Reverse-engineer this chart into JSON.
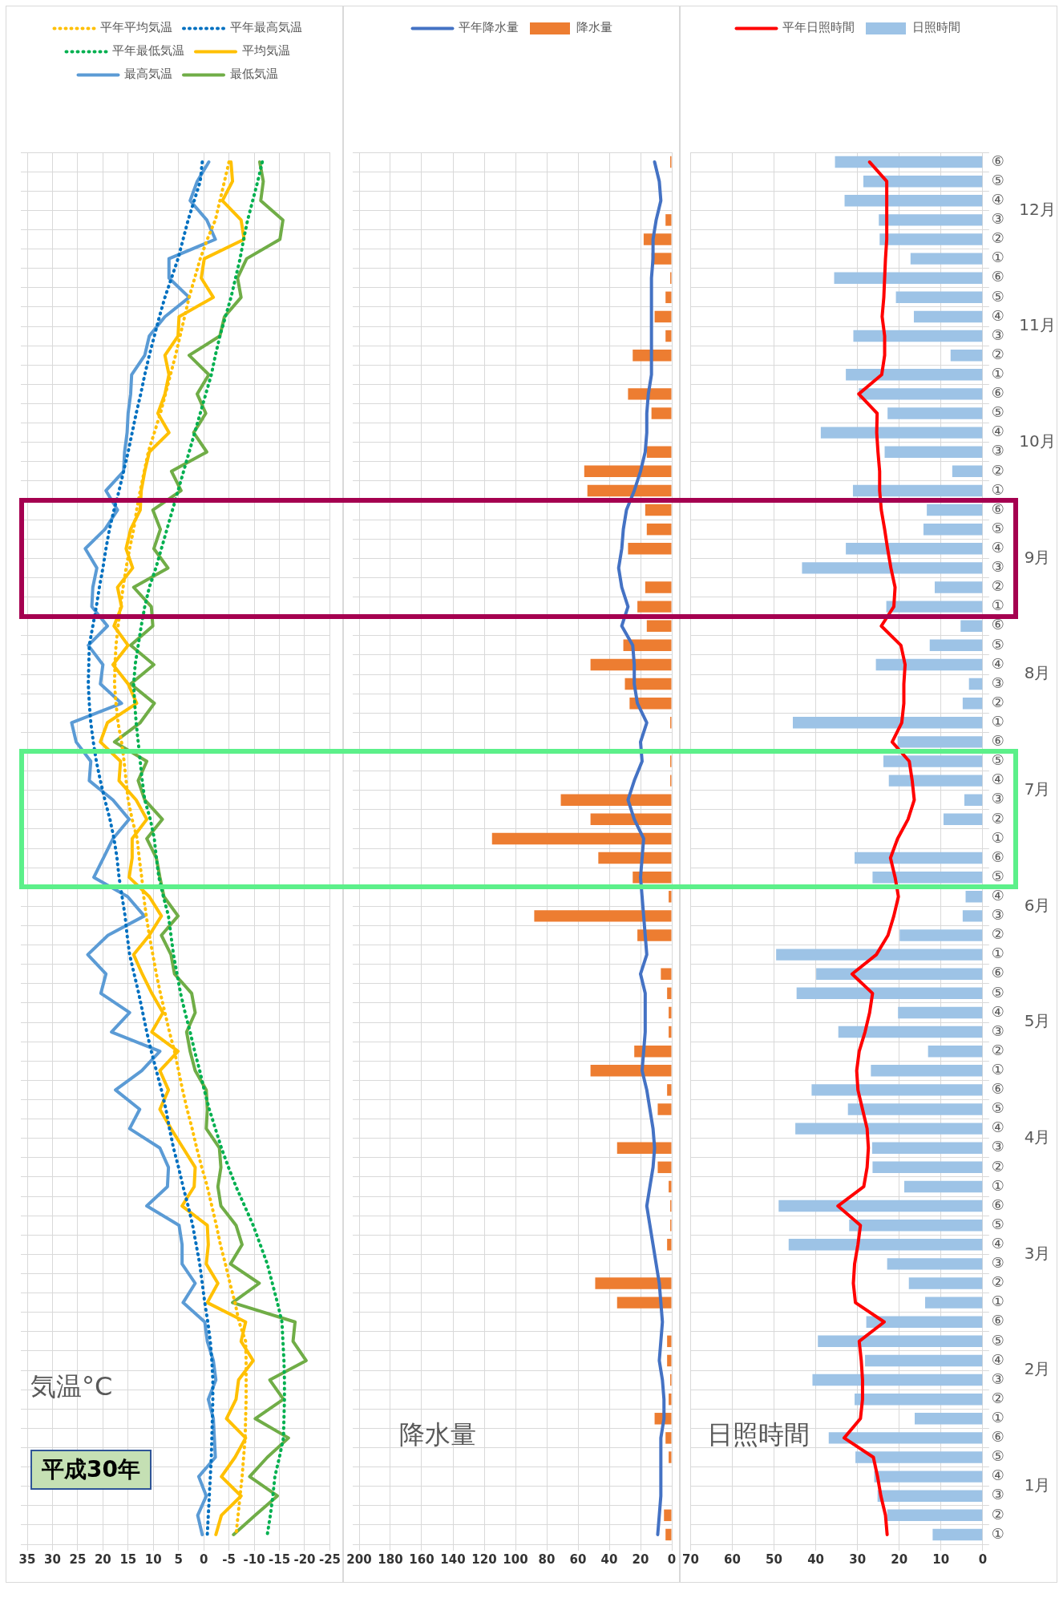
{
  "chart_data": [
    {
      "type": "line",
      "orientation": "horizontal",
      "title": "平成30年",
      "xlabel": "気温°C",
      "categories": [
        null,
        null,
        null,
        null,
        null,
        null,
        null,
        null,
        null,
        null,
        null,
        null,
        null,
        null,
        null,
        null,
        null,
        null,
        null,
        null,
        null,
        null,
        null,
        null,
        null,
        null,
        null,
        null,
        null,
        null,
        null,
        null,
        null,
        null,
        null,
        null,
        null,
        null,
        null,
        null,
        null,
        null,
        null,
        null,
        null,
        null,
        null,
        null,
        null,
        null,
        null,
        null,
        null,
        null,
        null,
        null,
        null,
        null,
        null,
        null,
        null,
        null,
        null,
        null,
        null,
        null,
        null,
        null,
        null,
        null,
        null,
        null
      ],
      "xlim": [
        35,
        -25
      ],
      "xticks": [
        35,
        30,
        25,
        20,
        15,
        10,
        5,
        0,
        -5,
        -10,
        -15,
        -20,
        -25
      ],
      "grid": true,
      "legend": "top",
      "tick_labels": "x",
      "series": [
        {
          "name": "平年平均気温",
          "color": "#ffc000",
          "line_style": "dotted",
          "values": [
            -5.0,
            -4.1,
            -3.2,
            -2.3,
            -0.7,
            0.7,
            1.8,
            2.9,
            3.8,
            4.7,
            5.6,
            6.6,
            7.6,
            8.6,
            9.8,
            11.0,
            11.8,
            12.6,
            13.3,
            13.9,
            14.7,
            15.4,
            16.0,
            16.5,
            17.0,
            17.4,
            17.6,
            17.7,
            17.4,
            17.0,
            16.3,
            15.8,
            15.4,
            15.0,
            14.2,
            13.2,
            12.8,
            12.3,
            11.9,
            11.4,
            10.8,
            10.1,
            9.4,
            8.6,
            7.7,
            6.8,
            5.8,
            5.0,
            4.2,
            3.3,
            2.3,
            1.4,
            0.4,
            -0.7,
            -1.6,
            -2.5,
            -3.3,
            -4.3,
            -5.2,
            -6.2,
            -7.0,
            -8.3,
            -8.4,
            -8.4,
            -8.4,
            -8.3,
            -8.2,
            -7.9,
            -7.6,
            -7.2,
            -6.8,
            -6.4
          ]
        },
        {
          "name": "平年最高気温",
          "color": "#0070c0",
          "line_style": "dotted",
          "values": [
            0.3,
            0.7,
            1.9,
            3.1,
            4.1,
            5.1,
            6.4,
            7.7,
            8.8,
            9.8,
            10.8,
            11.7,
            12.5,
            13.4,
            14.2,
            15.0,
            15.9,
            16.8,
            17.8,
            18.7,
            19.4,
            20.0,
            20.7,
            21.3,
            22.0,
            22.7,
            22.8,
            22.9,
            22.7,
            22.4,
            21.9,
            21.3,
            20.5,
            19.6,
            18.6,
            17.8,
            17.2,
            16.8,
            16.2,
            15.6,
            15.2,
            14.7,
            13.8,
            12.9,
            12.1,
            11.3,
            10.4,
            9.4,
            8.4,
            7.5,
            6.8,
            6.0,
            5.0,
            4.1,
            3.1,
            2.2,
            1.5,
            0.8,
            0.3,
            -0.2,
            -0.8,
            -1.3,
            -1.6,
            -1.8,
            -1.8,
            -1.7,
            -1.6,
            -1.5,
            -1.3,
            -1.1,
            -0.9,
            -0.7
          ]
        },
        {
          "name": "平年最低気温",
          "color": "#00b050",
          "line_style": "dotted",
          "values": [
            -11.6,
            -10.7,
            -9.7,
            -8.7,
            -7.9,
            -7.2,
            -6.3,
            -5.4,
            -4.3,
            -3.2,
            -2.3,
            -1.5,
            -0.4,
            0.7,
            1.8,
            2.9,
            4.0,
            5.1,
            6.2,
            7.3,
            8.4,
            9.5,
            10.8,
            11.7,
            12.4,
            13.0,
            13.6,
            13.9,
            13.7,
            13.4,
            13.0,
            12.6,
            12.2,
            11.7,
            10.6,
            9.8,
            9.4,
            8.9,
            8.0,
            7.0,
            6.5,
            6.0,
            5.3,
            4.6,
            3.7,
            2.7,
            1.8,
            0.8,
            -0.1,
            -1.1,
            -2.3,
            -3.5,
            -4.9,
            -6.4,
            -8.1,
            -9.8,
            -11.2,
            -12.6,
            -13.6,
            -14.6,
            -15.5,
            -15.7,
            -15.9,
            -16.0,
            -16.0,
            -15.9,
            -15.8,
            -15.0,
            -14.1,
            -13.7,
            -13.2,
            -12.6
          ]
        },
        {
          "name": "平均気温",
          "color": "#ffc000",
          "line_style": "solid",
          "values": [
            -5.4,
            -5.7,
            -3.7,
            -7.4,
            -8.0,
            -0.1,
            0.5,
            -1.9,
            4.9,
            5.1,
            7.7,
            6.9,
            7.7,
            9.1,
            6.9,
            10.8,
            11.7,
            12.4,
            12.6,
            14.5,
            15.4,
            14.1,
            17.1,
            16.3,
            17.8,
            15.0,
            18.0,
            15.0,
            13.3,
            19.1,
            20.5,
            16.5,
            16.8,
            13.4,
            11.3,
            14.2,
            14.2,
            14.8,
            10.8,
            8.4,
            10.8,
            13.9,
            12.2,
            10.3,
            8.1,
            10.3,
            5.1,
            8.7,
            7.0,
            8.7,
            6.5,
            4.1,
            1.7,
            1.9,
            4.3,
            -0.7,
            -0.9,
            -0.5,
            -2.8,
            -0.7,
            -8.3,
            -7.4,
            -9.8,
            -6.9,
            -6.4,
            -4.5,
            -8.3,
            -6.2,
            -3.5,
            -7.4,
            -3.5,
            -2.4
          ]
        },
        {
          "name": "最高気温",
          "color": "#5b9bd5",
          "line_style": "solid",
          "values": [
            -1.0,
            1.3,
            2.7,
            -0.6,
            -2.3,
            6.9,
            6.9,
            2.9,
            7.7,
            10.8,
            11.7,
            14.3,
            14.5,
            15.0,
            15.2,
            15.7,
            15.9,
            19.4,
            17.1,
            19.6,
            23.5,
            21.2,
            22.0,
            22.2,
            19.1,
            22.9,
            20.0,
            20.5,
            16.3,
            26.2,
            25.3,
            22.4,
            22.7,
            18.0,
            14.8,
            18.0,
            19.9,
            21.8,
            15.1,
            11.8,
            19.0,
            23.0,
            19.4,
            20.4,
            14.7,
            18.3,
            8.7,
            12.3,
            17.5,
            12.7,
            14.7,
            8.7,
            7.0,
            7.2,
            11.3,
            4.9,
            4.3,
            4.3,
            1.7,
            4.1,
            -0.2,
            -0.7,
            -1.9,
            -2.4,
            -0.9,
            -1.9,
            -2.1,
            -2.3,
            1.0,
            -0.5,
            1.2,
            0.3
          ]
        },
        {
          "name": "最低気温",
          "color": "#70ad47",
          "line_style": "solid",
          "values": [
            -11.1,
            -11.8,
            -11.3,
            -15.7,
            -15.1,
            -8.5,
            -6.7,
            -7.4,
            -4.1,
            -3.2,
            2.9,
            -1.0,
            1.3,
            -0.4,
            2.0,
            -0.6,
            6.4,
            4.5,
            10.1,
            8.6,
            9.9,
            7.1,
            13.9,
            10.4,
            10.1,
            14.5,
            9.9,
            14.5,
            9.8,
            12.6,
            17.7,
            11.3,
            13.0,
            11.7,
            8.2,
            11.3,
            9.4,
            8.7,
            7.9,
            5.1,
            8.4,
            6.5,
            5.8,
            2.4,
            1.7,
            3.4,
            2.7,
            1.7,
            -0.5,
            -0.7,
            -0.5,
            -3.1,
            -3.4,
            -2.8,
            -3.4,
            -6.4,
            -7.6,
            -5.3,
            -11.0,
            -5.7,
            -18.1,
            -17.7,
            -20.3,
            -13.1,
            -15.8,
            -10.2,
            -16.8,
            -12.6,
            -9.1,
            -14.6,
            -10.2,
            -5.9
          ]
        }
      ]
    },
    {
      "type": "bar",
      "orientation": "horizontal",
      "xlabel": "降水量",
      "categories": [
        null,
        null,
        null,
        null,
        null,
        null,
        null,
        null,
        null,
        null,
        null,
        null,
        null,
        null,
        null,
        null,
        null,
        null,
        null,
        null,
        null,
        null,
        null,
        null,
        null,
        null,
        null,
        null,
        null,
        null,
        null,
        null,
        null,
        null,
        null,
        null,
        null,
        null,
        null,
        null,
        null,
        null,
        null,
        null,
        null,
        null,
        null,
        null,
        null,
        null,
        null,
        null,
        null,
        null,
        null,
        null,
        null,
        null,
        null,
        null,
        null,
        null,
        null,
        null,
        null,
        null,
        null,
        null,
        null,
        null,
        null,
        null
      ],
      "xlim": [
        200,
        0
      ],
      "xticks": [
        200,
        180,
        160,
        140,
        120,
        100,
        80,
        60,
        40,
        20,
        0
      ],
      "grid": true,
      "legend": "top",
      "tick_labels": "x",
      "series": [
        {
          "name": "降水量",
          "color": "#ed7d31",
          "values": [
            1,
            0,
            0,
            4,
            18,
            13,
            1,
            4,
            11,
            4,
            25,
            0,
            28,
            13,
            0,
            16,
            56,
            54,
            17,
            16,
            28,
            0,
            17,
            22,
            16,
            31,
            52,
            30,
            27,
            1,
            0,
            1,
            1,
            71,
            52,
            115,
            47,
            25,
            2,
            88,
            22,
            0,
            7,
            3,
            2,
            2,
            24,
            52,
            3,
            9,
            0,
            35,
            9,
            2,
            1,
            1,
            3,
            0,
            49,
            35,
            0,
            3,
            3,
            1,
            2,
            11,
            4,
            2,
            0,
            0,
            5,
            4
          ]
        },
        {
          "name": "平年降水量",
          "type": "line",
          "color": "#4472c4",
          "values": [
            11,
            8,
            7,
            10,
            12,
            12,
            13,
            13,
            13,
            13,
            13,
            13,
            15,
            16,
            16,
            17,
            20,
            24,
            29,
            31,
            32,
            34,
            32,
            28,
            32,
            25,
            24,
            24,
            22,
            16,
            20,
            19,
            24,
            28,
            24,
            18,
            19,
            20,
            19,
            18,
            17,
            16,
            20,
            17,
            17,
            17,
            18,
            19,
            16,
            14,
            12,
            11,
            12,
            14,
            16,
            14,
            12,
            10,
            8,
            7,
            6,
            7,
            8,
            6,
            5,
            5,
            7,
            7,
            7,
            7,
            8,
            9
          ]
        }
      ]
    },
    {
      "type": "bar",
      "orientation": "horizontal",
      "xlabel": "日照時間",
      "categories": [
        "⑥",
        "⑤",
        "④",
        "③",
        "②",
        "①",
        "⑥",
        "⑤",
        "④",
        "③",
        "②",
        "①",
        "⑥",
        "⑤",
        "④",
        "③",
        "②",
        "①",
        "⑥",
        "⑤",
        "④",
        "③",
        "②",
        "①",
        "⑥",
        "⑤",
        "④",
        "③",
        "②",
        "①",
        "⑥",
        "⑤",
        "④",
        "③",
        "②",
        "①",
        "⑥",
        "⑤",
        "④",
        "③",
        "②",
        "①",
        "⑥",
        "⑤",
        "④",
        "③",
        "②",
        "①",
        "⑥",
        "⑤",
        "④",
        "③",
        "②",
        "①",
        "⑥",
        "⑤",
        "④",
        "③",
        "②",
        "①",
        "⑥",
        "⑤",
        "④",
        "③",
        "②",
        "①",
        "⑥",
        "⑤",
        "④",
        "③",
        "②",
        "①"
      ],
      "xlim": [
        70,
        0
      ],
      "xticks": [
        70,
        60,
        50,
        40,
        30,
        20,
        10,
        0
      ],
      "grid": true,
      "legend": "top",
      "annotations": [
        "12月",
        "11月",
        "10月",
        "9月",
        "8月",
        "7月",
        "6月",
        "5月",
        "4月",
        "3月",
        "2月",
        "1月"
      ],
      "series": [
        {
          "name": "日照時間",
          "color": "#9dc3e6",
          "values": [
            35.4,
            28.6,
            33.1,
            24.9,
            24.7,
            17.3,
            35.6,
            20.8,
            16.5,
            31.0,
            7.7,
            32.8,
            29.7,
            22.8,
            38.8,
            23.5,
            7.3,
            31.1,
            13.4,
            14.2,
            32.8,
            43.3,
            11.5,
            23.1,
            5.3,
            12.7,
            25.6,
            3.3,
            4.8,
            45.5,
            20.4,
            23.8,
            22.5,
            4.4,
            9.4,
            0,
            30.7,
            26.4,
            4.1,
            4.8,
            19.9,
            49.5,
            39.9,
            44.6,
            20.3,
            34.6,
            13.1,
            26.8,
            41.0,
            32.3,
            44.9,
            26.5,
            26.4,
            18.8,
            48.9,
            32.0,
            46.5,
            22.9,
            17.7,
            13.8,
            27.9,
            39.5,
            28.2,
            40.8,
            30.7,
            16.3,
            36.9,
            30.5,
            26.0,
            25.2,
            22.9,
            12.0
          ]
        },
        {
          "name": "平年日照時間",
          "type": "line",
          "color": "#ff0000",
          "values": [
            27.1,
            23.0,
            23.0,
            23.0,
            23.0,
            23.3,
            23.5,
            23.7,
            24.1,
            23.5,
            23.5,
            24.2,
            29.7,
            25.3,
            25.4,
            25.1,
            24.7,
            24.7,
            24.3,
            23.5,
            22.8,
            22.0,
            21.0,
            21.3,
            24.3,
            19.6,
            18.6,
            18.9,
            18.9,
            19.4,
            21.7,
            17.6,
            16.9,
            16.4,
            17.9,
            20.4,
            22.1,
            21.0,
            20.2,
            21.3,
            22.7,
            25.5,
            31.3,
            26.4,
            27.1,
            28.2,
            29.6,
            30.2,
            29.9,
            28.8,
            27.7,
            27.4,
            27.7,
            28.5,
            34.7,
            29.3,
            29.9,
            30.7,
            31.0,
            30.5,
            23.6,
            29.6,
            29.1,
            28.8,
            28.8,
            29.3,
            33.2,
            26.2,
            25.2,
            24.4,
            23.3,
            22.9
          ]
        }
      ]
    }
  ]
}
